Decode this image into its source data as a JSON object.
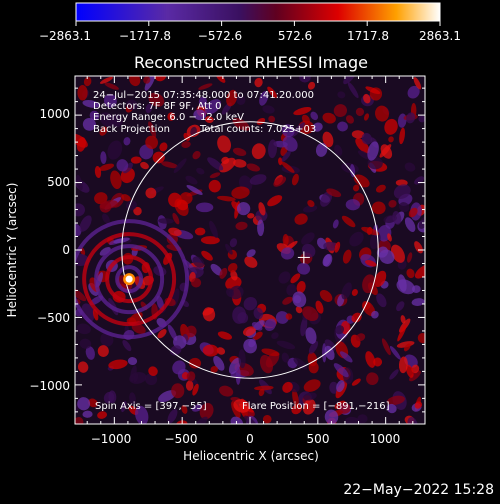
{
  "chart_data": {
    "type": "heatmap",
    "title": "Reconstructed RHESSI Image",
    "xlabel": "Heliocentric X (arcsec)",
    "ylabel": "Heliocentric Y (arcsec)",
    "xlim": [
      -1290,
      1290
    ],
    "ylim": [
      -1290,
      1290
    ],
    "x_ticks": [
      -1000,
      -500,
      0,
      500,
      1000
    ],
    "x_tick_labels": [
      "−1000",
      "−500",
      "0",
      "500",
      "1000"
    ],
    "y_ticks": [
      -1000,
      -500,
      0,
      500,
      1000
    ],
    "y_tick_labels": [
      "−1000",
      "−500",
      "0",
      "500",
      "1000"
    ],
    "colorbar": {
      "min": -2863.1,
      "max": 2863.1,
      "tick_labels": [
        "−2863.1",
        "−1717.8",
        "−572.6",
        "572.6",
        "1717.8",
        "2863.1"
      ],
      "colors": [
        "#0000ff",
        "#5a2aa5",
        "#3a1060",
        "#600020",
        "#dd0000",
        "#ffa000",
        "#ffffff"
      ]
    },
    "annotations": {
      "line1": "24−Jul−2015 07:35:48.000 to 07:41:20.000",
      "line2": "Detectors: 7F 8F 9F, Att 0",
      "line3": "Energy Range: 6.0 − 12.0 keV",
      "line4": "Back Projection",
      "total_counts": "Total counts: 7.025+03",
      "spin_axis": "Spin Axis = [397,−55]",
      "flare_position": "Flare Position = [−891,−216]"
    },
    "solar_limb_radius": 945,
    "spin_axis_xy": [
      397,
      -55
    ],
    "flare_xy": [
      -891,
      -216
    ],
    "timestamp": "22−May−2022 15:28"
  }
}
